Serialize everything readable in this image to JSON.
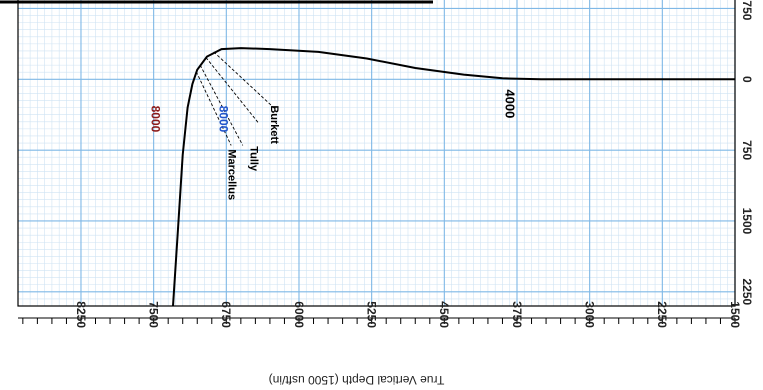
{
  "chart_data": {
    "type": "line",
    "title": "",
    "xlabel": "True Vertical Depth (1500 usft/in)",
    "ylabel": "",
    "x_ticks": [
      1500,
      2250,
      3000,
      3750,
      4500,
      5250,
      6000,
      6750,
      7500,
      8250
    ],
    "x_tick_labels": [
      "1500",
      "2250",
      "3000",
      "3750",
      "4500",
      "5250",
      "6000",
      "6750",
      "7500",
      "8250"
    ],
    "y_ticks": [
      -750,
      0,
      750,
      1500,
      2250
    ],
    "y_tick_labels": [
      "-750",
      "0",
      "750",
      "1500",
      "2250"
    ],
    "xlim": [
      1500,
      8900
    ],
    "ylim": [
      -850,
      2400
    ],
    "grid": true,
    "orientation": "rotated 180 degrees (text upside down)",
    "series": [
      {
        "name": "",
        "points": [
          [
            1500,
            0
          ],
          [
            2500,
            0
          ],
          [
            3500,
            0
          ],
          [
            3900,
            -10
          ],
          [
            4300,
            -50
          ],
          [
            4800,
            -120
          ],
          [
            5300,
            -220
          ],
          [
            5800,
            -290
          ],
          [
            6300,
            -320
          ],
          [
            6600,
            -330
          ],
          [
            6800,
            -320
          ],
          [
            6950,
            -240
          ],
          [
            7050,
            -100
          ],
          [
            7100,
            50
          ],
          [
            7150,
            300
          ],
          [
            7200,
            800
          ],
          [
            7250,
            1600
          ],
          [
            7300,
            2400
          ]
        ]
      }
    ],
    "annotations": [
      {
        "text": "4000"
      },
      {
        "text": "8000"
      },
      {
        "text": "8000"
      },
      {
        "text": "Burkett"
      },
      {
        "text": "Tully"
      },
      {
        "text": "Marcellus"
      }
    ],
    "colors": {
      "grid": "#7fb8e6",
      "grid_minor": "#cfe3f3",
      "curve": "#000000",
      "blue_label": "#2255cc",
      "red_label": "#8b1a1a"
    }
  }
}
